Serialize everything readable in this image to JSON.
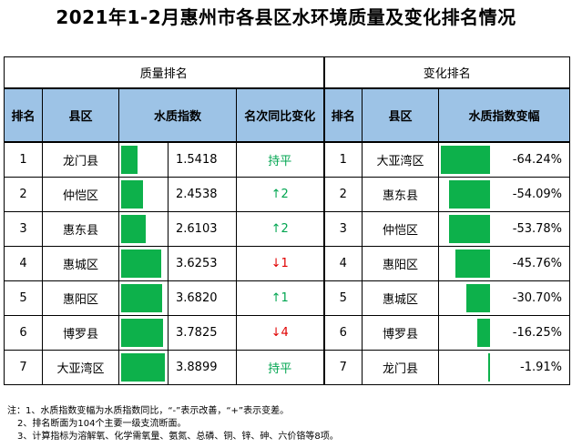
{
  "title": "2021年1-2月惠州市各县区水环境质量及变化排名情况",
  "groups": {
    "quality": "质量排名",
    "change": "变化排名"
  },
  "headers": {
    "rank": "排名",
    "district": "县区",
    "wqi": "水质指数",
    "rank_change": "名次同比变化",
    "rank2": "排名",
    "district2": "县区",
    "wqi_change": "水质指数变幅"
  },
  "quality_rows": [
    {
      "rank": "1",
      "district": "龙门县",
      "wqi": "1.5418",
      "wqi_value": 1.5418,
      "change": "持平",
      "change_dir": "flat"
    },
    {
      "rank": "2",
      "district": "仲恺区",
      "wqi": "2.4538",
      "wqi_value": 2.4538,
      "change": "↑2",
      "change_dir": "up"
    },
    {
      "rank": "3",
      "district": "惠东县",
      "wqi": "2.6103",
      "wqi_value": 2.6103,
      "change": "↑2",
      "change_dir": "up"
    },
    {
      "rank": "4",
      "district": "惠城区",
      "wqi": "3.6253",
      "wqi_value": 3.6253,
      "change": "↓1",
      "change_dir": "down"
    },
    {
      "rank": "5",
      "district": "惠阳区",
      "wqi": "3.6820",
      "wqi_value": 3.682,
      "change": "↑1",
      "change_dir": "up"
    },
    {
      "rank": "6",
      "district": "博罗县",
      "wqi": "3.7825",
      "wqi_value": 3.7825,
      "change": "↓4",
      "change_dir": "down"
    },
    {
      "rank": "7",
      "district": "大亚湾区",
      "wqi": "3.8899",
      "wqi_value": 3.8899,
      "change": "持平",
      "change_dir": "flat"
    }
  ],
  "change_rows": [
    {
      "rank": "1",
      "district": "大亚湾区",
      "pct": "-64.24%",
      "pct_value": -64.24
    },
    {
      "rank": "2",
      "district": "惠东县",
      "pct": "-54.09%",
      "pct_value": -54.09
    },
    {
      "rank": "3",
      "district": "仲恺区",
      "pct": "-53.78%",
      "pct_value": -53.78
    },
    {
      "rank": "4",
      "district": "惠阳区",
      "pct": "-45.76%",
      "pct_value": -45.76
    },
    {
      "rank": "5",
      "district": "惠城区",
      "pct": "-30.70%",
      "pct_value": -30.7
    },
    {
      "rank": "6",
      "district": "博罗县",
      "pct": "-16.25%",
      "pct_value": -16.25
    },
    {
      "rank": "7",
      "district": "龙门县",
      "pct": "-1.91%",
      "pct_value": -1.91
    }
  ],
  "notes": [
    "注：1、水质指数变幅为水质指数同比，“-”表示改善，“+”表示变差。",
    "2、排名断面为104个主要一级支流断面。",
    "3、计算指标为溶解氧、化学需氧量、氨氮、总磷、铜、锌、砷、六价铬等8项。"
  ],
  "colors": {
    "header_bg": "#9dc3e6",
    "bar": "#0db14b",
    "up": "#00a550",
    "down": "#e00000"
  }
}
